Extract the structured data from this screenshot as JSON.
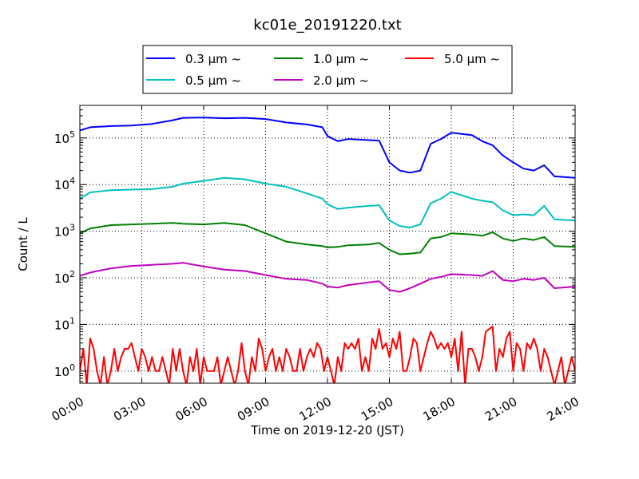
{
  "chart_data": {
    "type": "line",
    "title": "kc01e_20191220.txt",
    "xlabel": "Time on 2019-12-20 (JST)",
    "ylabel": "Count / L",
    "xscale": "linear",
    "yscale": "log",
    "xlim": [
      "00:00",
      "24:00"
    ],
    "ylim": [
      0.55,
      500000
    ],
    "x_tick_labels": [
      "00:00",
      "03:00",
      "06:00",
      "09:00",
      "12:00",
      "15:00",
      "18:00",
      "21:00",
      "24:00"
    ],
    "y_ticks": [
      {
        "base": "10",
        "exp": "0"
      },
      {
        "base": "10",
        "exp": "1"
      },
      {
        "base": "10",
        "exp": "2"
      },
      {
        "base": "10",
        "exp": "3"
      },
      {
        "base": "10",
        "exp": "4"
      },
      {
        "base": "10",
        "exp": "5"
      }
    ],
    "grid": true,
    "legend_position": "top-center",
    "series": [
      {
        "name": "0.3 µm  ~",
        "color": "#0000ff",
        "points": [
          [
            "00:00",
            145000
          ],
          [
            "00:30",
            170000
          ],
          [
            "01:30",
            180000
          ],
          [
            "02:30",
            185000
          ],
          [
            "03:30",
            200000
          ],
          [
            "04:30",
            240000
          ],
          [
            "05:00",
            270000
          ],
          [
            "06:00",
            275000
          ],
          [
            "07:00",
            265000
          ],
          [
            "08:00",
            270000
          ],
          [
            "09:00",
            255000
          ],
          [
            "10:00",
            215000
          ],
          [
            "11:00",
            195000
          ],
          [
            "11:45",
            170000
          ],
          [
            "12:00",
            110000
          ],
          [
            "12:30",
            85000
          ],
          [
            "13:00",
            95000
          ],
          [
            "14:00",
            90000
          ],
          [
            "14:30",
            88000
          ],
          [
            "15:00",
            30000
          ],
          [
            "15:30",
            20000
          ],
          [
            "16:00",
            18000
          ],
          [
            "16:30",
            20000
          ],
          [
            "17:00",
            75000
          ],
          [
            "17:30",
            95000
          ],
          [
            "18:00",
            130000
          ],
          [
            "19:00",
            115000
          ],
          [
            "19:30",
            85000
          ],
          [
            "20:00",
            70000
          ],
          [
            "20:30",
            42000
          ],
          [
            "21:00",
            30000
          ],
          [
            "21:30",
            22000
          ],
          [
            "22:00",
            20000
          ],
          [
            "22:30",
            26000
          ],
          [
            "23:00",
            15000
          ],
          [
            "24:00",
            14000
          ]
        ]
      },
      {
        "name": "0.5 µm  ~",
        "color": "#00bfbf",
        "points": [
          [
            "00:00",
            5000
          ],
          [
            "00:30",
            6800
          ],
          [
            "01:30",
            7600
          ],
          [
            "02:30",
            7800
          ],
          [
            "03:30",
            8000
          ],
          [
            "04:30",
            9000
          ],
          [
            "05:00",
            10500
          ],
          [
            "06:00",
            12000
          ],
          [
            "07:00",
            14000
          ],
          [
            "08:00",
            13000
          ],
          [
            "09:00",
            10500
          ],
          [
            "10:00",
            9000
          ],
          [
            "11:00",
            6500
          ],
          [
            "11:45",
            5000
          ],
          [
            "12:00",
            3800
          ],
          [
            "12:30",
            3000
          ],
          [
            "13:00",
            3200
          ],
          [
            "14:00",
            3500
          ],
          [
            "14:30",
            3600
          ],
          [
            "15:00",
            1700
          ],
          [
            "15:30",
            1300
          ],
          [
            "16:00",
            1200
          ],
          [
            "16:30",
            1400
          ],
          [
            "17:00",
            4000
          ],
          [
            "17:30",
            5000
          ],
          [
            "18:00",
            7000
          ],
          [
            "19:00",
            5000
          ],
          [
            "19:30",
            4500
          ],
          [
            "20:00",
            4200
          ],
          [
            "20:30",
            2800
          ],
          [
            "21:00",
            2200
          ],
          [
            "21:30",
            2300
          ],
          [
            "22:00",
            2200
          ],
          [
            "22:30",
            3500
          ],
          [
            "23:00",
            1800
          ],
          [
            "24:00",
            1700
          ]
        ]
      },
      {
        "name": "1.0 µm  ~",
        "color": "#008000",
        "points": [
          [
            "00:00",
            900
          ],
          [
            "00:30",
            1150
          ],
          [
            "01:30",
            1350
          ],
          [
            "02:30",
            1400
          ],
          [
            "03:30",
            1450
          ],
          [
            "04:30",
            1500
          ],
          [
            "05:00",
            1450
          ],
          [
            "06:00",
            1400
          ],
          [
            "07:00",
            1500
          ],
          [
            "08:00",
            1350
          ],
          [
            "09:00",
            900
          ],
          [
            "10:00",
            600
          ],
          [
            "11:00",
            520
          ],
          [
            "11:45",
            480
          ],
          [
            "12:00",
            450
          ],
          [
            "12:30",
            460
          ],
          [
            "13:00",
            500
          ],
          [
            "14:00",
            520
          ],
          [
            "14:30",
            560
          ],
          [
            "15:00",
            400
          ],
          [
            "15:30",
            320
          ],
          [
            "16:00",
            330
          ],
          [
            "16:30",
            350
          ],
          [
            "17:00",
            700
          ],
          [
            "17:30",
            750
          ],
          [
            "18:00",
            900
          ],
          [
            "19:00",
            850
          ],
          [
            "19:30",
            800
          ],
          [
            "20:00",
            950
          ],
          [
            "20:30",
            700
          ],
          [
            "21:00",
            620
          ],
          [
            "21:30",
            700
          ],
          [
            "22:00",
            650
          ],
          [
            "22:30",
            750
          ],
          [
            "23:00",
            480
          ],
          [
            "24:00",
            460
          ]
        ]
      },
      {
        "name": "2.0 µm  ~",
        "color": "#bf00bf",
        "points": [
          [
            "00:00",
            110
          ],
          [
            "00:30",
            130
          ],
          [
            "01:30",
            160
          ],
          [
            "02:30",
            180
          ],
          [
            "03:30",
            190
          ],
          [
            "04:30",
            200
          ],
          [
            "05:00",
            210
          ],
          [
            "06:00",
            175
          ],
          [
            "07:00",
            150
          ],
          [
            "08:00",
            140
          ],
          [
            "09:00",
            115
          ],
          [
            "10:00",
            95
          ],
          [
            "11:00",
            90
          ],
          [
            "11:45",
            75
          ],
          [
            "12:00",
            65
          ],
          [
            "12:30",
            62
          ],
          [
            "13:00",
            70
          ],
          [
            "14:00",
            80
          ],
          [
            "14:30",
            85
          ],
          [
            "15:00",
            55
          ],
          [
            "15:30",
            50
          ],
          [
            "16:00",
            60
          ],
          [
            "16:30",
            75
          ],
          [
            "17:00",
            95
          ],
          [
            "17:30",
            105
          ],
          [
            "18:00",
            120
          ],
          [
            "19:00",
            115
          ],
          [
            "19:30",
            110
          ],
          [
            "20:00",
            140
          ],
          [
            "20:30",
            90
          ],
          [
            "21:00",
            85
          ],
          [
            "21:30",
            95
          ],
          [
            "22:00",
            90
          ],
          [
            "22:30",
            100
          ],
          [
            "23:00",
            60
          ],
          [
            "24:00",
            65
          ]
        ]
      },
      {
        "name": "5.0 µm  ~",
        "color": "#ff0000",
        "points": [
          [
            "00:00",
            1
          ],
          [
            "00:10",
            3
          ],
          [
            "00:20",
            0.5
          ],
          [
            "00:30",
            5
          ],
          [
            "00:40",
            3
          ],
          [
            "00:50",
            1
          ],
          [
            "01:00",
            0.5
          ],
          [
            "01:10",
            2
          ],
          [
            "01:20",
            0.5
          ],
          [
            "01:30",
            1
          ],
          [
            "01:40",
            3
          ],
          [
            "01:50",
            1
          ],
          [
            "02:00",
            2
          ],
          [
            "02:10",
            3
          ],
          [
            "02:20",
            3
          ],
          [
            "02:30",
            4
          ],
          [
            "02:40",
            2
          ],
          [
            "02:50",
            1
          ],
          [
            "03:00",
            3
          ],
          [
            "03:10",
            2
          ],
          [
            "03:20",
            1
          ],
          [
            "03:30",
            2
          ],
          [
            "03:40",
            1
          ],
          [
            "03:50",
            1
          ],
          [
            "04:00",
            2
          ],
          [
            "04:10",
            1
          ],
          [
            "04:20",
            0.5
          ],
          [
            "04:30",
            3
          ],
          [
            "04:40",
            1
          ],
          [
            "04:50",
            3
          ],
          [
            "05:00",
            1
          ],
          [
            "05:10",
            0.5
          ],
          [
            "05:20",
            2
          ],
          [
            "05:30",
            1
          ],
          [
            "05:40",
            3
          ],
          [
            "05:50",
            0.5
          ],
          [
            "06:00",
            2
          ],
          [
            "06:10",
            1
          ],
          [
            "06:20",
            1
          ],
          [
            "06:30",
            1
          ],
          [
            "06:40",
            2
          ],
          [
            "06:50",
            0.5
          ],
          [
            "07:00",
            1
          ],
          [
            "07:10",
            2
          ],
          [
            "07:20",
            1
          ],
          [
            "07:30",
            0.5
          ],
          [
            "07:40",
            1
          ],
          [
            "07:50",
            4
          ],
          [
            "08:00",
            1
          ],
          [
            "08:10",
            0.5
          ],
          [
            "08:20",
            2
          ],
          [
            "08:30",
            1
          ],
          [
            "08:40",
            5
          ],
          [
            "08:50",
            3
          ],
          [
            "09:00",
            1
          ],
          [
            "09:10",
            2
          ],
          [
            "09:20",
            3
          ],
          [
            "09:30",
            1
          ],
          [
            "09:40",
            2
          ],
          [
            "09:50",
            1
          ],
          [
            "10:00",
            3
          ],
          [
            "10:10",
            2
          ],
          [
            "10:20",
            1
          ],
          [
            "10:30",
            1
          ],
          [
            "10:40",
            3
          ],
          [
            "10:50",
            1
          ],
          [
            "11:00",
            2
          ],
          [
            "11:10",
            3
          ],
          [
            "11:20",
            2
          ],
          [
            "11:30",
            4
          ],
          [
            "11:40",
            3
          ],
          [
            "11:50",
            1
          ],
          [
            "12:00",
            2
          ],
          [
            "12:10",
            1
          ],
          [
            "12:20",
            0.5
          ],
          [
            "12:30",
            2
          ],
          [
            "12:40",
            1
          ],
          [
            "12:50",
            4
          ],
          [
            "13:00",
            3
          ],
          [
            "13:10",
            4
          ],
          [
            "13:20",
            3
          ],
          [
            "13:30",
            5
          ],
          [
            "13:40",
            1
          ],
          [
            "13:50",
            2
          ],
          [
            "14:00",
            1
          ],
          [
            "14:10",
            5
          ],
          [
            "14:20",
            3
          ],
          [
            "14:30",
            8
          ],
          [
            "14:40",
            3
          ],
          [
            "14:50",
            4
          ],
          [
            "15:00",
            2
          ],
          [
            "15:10",
            5
          ],
          [
            "15:20",
            3
          ],
          [
            "15:30",
            7
          ],
          [
            "15:40",
            1
          ],
          [
            "15:50",
            1
          ],
          [
            "16:00",
            2
          ],
          [
            "16:10",
            5
          ],
          [
            "16:20",
            4
          ],
          [
            "16:30",
            1
          ],
          [
            "16:40",
            2
          ],
          [
            "16:50",
            4
          ],
          [
            "17:00",
            7
          ],
          [
            "17:10",
            5
          ],
          [
            "17:20",
            3
          ],
          [
            "17:30",
            4
          ],
          [
            "17:40",
            3
          ],
          [
            "17:50",
            4
          ],
          [
            "18:00",
            2
          ],
          [
            "18:10",
            5
          ],
          [
            "18:20",
            1
          ],
          [
            "18:30",
            7
          ],
          [
            "18:40",
            0.5
          ],
          [
            "18:50",
            3
          ],
          [
            "19:00",
            3
          ],
          [
            "19:10",
            2
          ],
          [
            "19:20",
            1
          ],
          [
            "19:30",
            2
          ],
          [
            "19:40",
            7
          ],
          [
            "19:50",
            8
          ],
          [
            "20:00",
            9
          ],
          [
            "20:10",
            1
          ],
          [
            "20:20",
            3
          ],
          [
            "20:30",
            2
          ],
          [
            "20:40",
            5
          ],
          [
            "20:50",
            7
          ],
          [
            "21:00",
            1
          ],
          [
            "21:10",
            4
          ],
          [
            "21:20",
            3
          ],
          [
            "21:30",
            1
          ],
          [
            "21:40",
            4
          ],
          [
            "21:50",
            3
          ],
          [
            "22:00",
            5
          ],
          [
            "22:10",
            3
          ],
          [
            "22:20",
            1
          ],
          [
            "22:30",
            3
          ],
          [
            "22:40",
            2
          ],
          [
            "22:50",
            1
          ],
          [
            "23:00",
            0.5
          ],
          [
            "23:10",
            1
          ],
          [
            "23:20",
            2
          ],
          [
            "23:30",
            0.5
          ],
          [
            "23:40",
            1
          ],
          [
            "23:50",
            2
          ],
          [
            "24:00",
            1
          ]
        ]
      }
    ]
  }
}
